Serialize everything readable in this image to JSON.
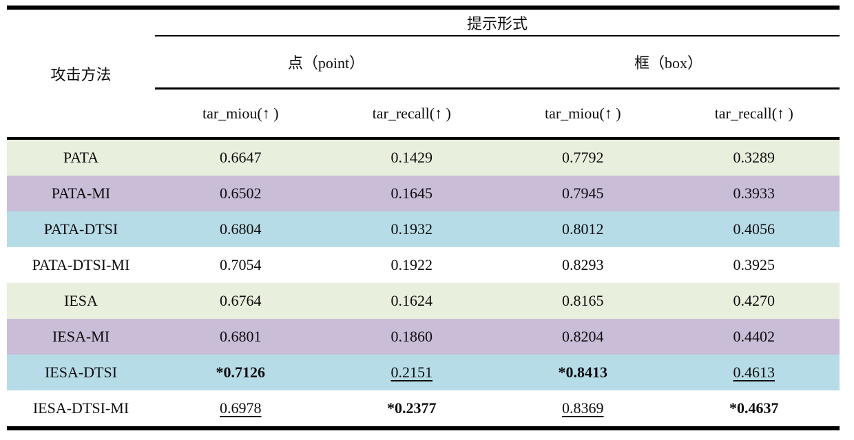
{
  "table": {
    "top_header": "提示形式",
    "col1_header": "攻击方法",
    "group_point": "点（point）",
    "group_box": "框（box）",
    "metric_headers": [
      "tar_miou(↑ )",
      "tar_recall(↑ )",
      "tar_miou(↑ )",
      "tar_recall(↑ )"
    ],
    "colors": {
      "row_green": "#e9efdd",
      "row_purple": "#cabdd8",
      "row_blue": "#b6dce8",
      "row_white": "#ffffff",
      "border": "#000000"
    },
    "rows": [
      {
        "method": "PATA",
        "cells": [
          {
            "text": "0.6647",
            "emphasis": ""
          },
          {
            "text": "0.1429",
            "emphasis": ""
          },
          {
            "text": "0.7792",
            "emphasis": ""
          },
          {
            "text": "0.3289",
            "emphasis": ""
          }
        ]
      },
      {
        "method": "PATA-MI",
        "cells": [
          {
            "text": "0.6502",
            "emphasis": ""
          },
          {
            "text": "0.1645",
            "emphasis": ""
          },
          {
            "text": "0.7945",
            "emphasis": ""
          },
          {
            "text": "0.3933",
            "emphasis": ""
          }
        ]
      },
      {
        "method": "PATA-DTSI",
        "cells": [
          {
            "text": "0.6804",
            "emphasis": ""
          },
          {
            "text": "0.1932",
            "emphasis": ""
          },
          {
            "text": "0.8012",
            "emphasis": ""
          },
          {
            "text": "0.4056",
            "emphasis": ""
          }
        ]
      },
      {
        "method": "PATA-DTSI-MI",
        "cells": [
          {
            "text": "0.7054",
            "emphasis": ""
          },
          {
            "text": "0.1922",
            "emphasis": ""
          },
          {
            "text": "0.8293",
            "emphasis": ""
          },
          {
            "text": "0.3925",
            "emphasis": ""
          }
        ]
      },
      {
        "method": "IESA",
        "cells": [
          {
            "text": "0.6764",
            "emphasis": ""
          },
          {
            "text": "0.1624",
            "emphasis": ""
          },
          {
            "text": "0.8165",
            "emphasis": ""
          },
          {
            "text": "0.4270",
            "emphasis": ""
          }
        ]
      },
      {
        "method": "IESA-MI",
        "cells": [
          {
            "text": "0.6801",
            "emphasis": ""
          },
          {
            "text": "0.1860",
            "emphasis": ""
          },
          {
            "text": "0.8204",
            "emphasis": ""
          },
          {
            "text": "0.4402",
            "emphasis": ""
          }
        ]
      },
      {
        "method": "IESA-DTSI",
        "cells": [
          {
            "text": "*0.7126",
            "emphasis": "bold"
          },
          {
            "text": "0.2151",
            "emphasis": "underline"
          },
          {
            "text": "*0.8413",
            "emphasis": "bold"
          },
          {
            "text": "0.4613",
            "emphasis": "underline"
          }
        ]
      },
      {
        "method": "IESA-DTSI-MI",
        "cells": [
          {
            "text": "0.6978",
            "emphasis": "underline"
          },
          {
            "text": "*0.2377",
            "emphasis": "bold"
          },
          {
            "text": "0.8369",
            "emphasis": "underline"
          },
          {
            "text": "*0.4637",
            "emphasis": "bold"
          }
        ]
      }
    ]
  }
}
